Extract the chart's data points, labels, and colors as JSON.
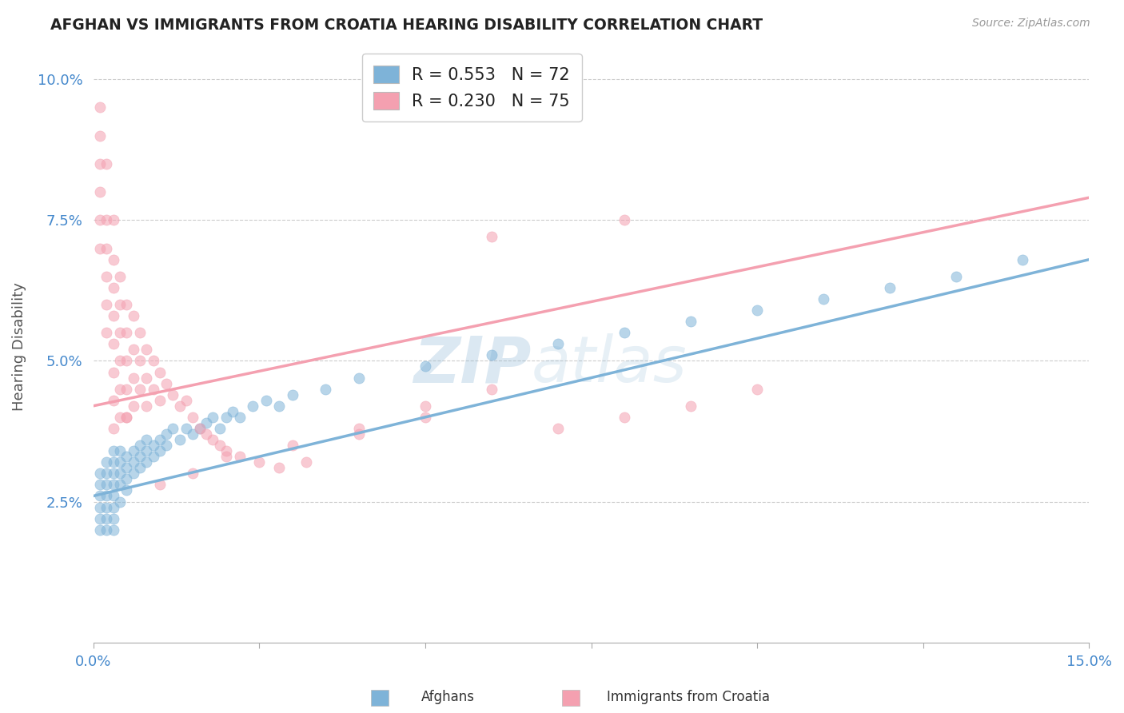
{
  "title": "AFGHAN VS IMMIGRANTS FROM CROATIA HEARING DISABILITY CORRELATION CHART",
  "source": "Source: ZipAtlas.com",
  "ylabel": "Hearing Disability",
  "xmin": 0.0,
  "xmax": 0.15,
  "ymin": 0.0,
  "ymax": 0.105,
  "yticks": [
    0.025,
    0.05,
    0.075,
    0.1
  ],
  "ytick_labels": [
    "2.5%",
    "5.0%",
    "7.5%",
    "10.0%"
  ],
  "xtick_left": "0.0%",
  "xtick_right": "15.0%",
  "blue_color": "#7EB3D8",
  "pink_color": "#F4A0B0",
  "blue_R": 0.553,
  "blue_N": 72,
  "pink_R": 0.23,
  "pink_N": 75,
  "legend_label_blue": "Afghans",
  "legend_label_pink": "Immigrants from Croatia",
  "watermark_zip": "ZIP",
  "watermark_atlas": "atlas",
  "blue_line_x0": 0.0,
  "blue_line_y0": 0.026,
  "blue_line_x1": 0.15,
  "blue_line_y1": 0.068,
  "pink_line_x0": 0.0,
  "pink_line_y0": 0.042,
  "pink_line_x1": 0.15,
  "pink_line_y1": 0.079,
  "blue_x": [
    0.001,
    0.001,
    0.001,
    0.001,
    0.001,
    0.001,
    0.002,
    0.002,
    0.002,
    0.002,
    0.002,
    0.002,
    0.002,
    0.003,
    0.003,
    0.003,
    0.003,
    0.003,
    0.003,
    0.003,
    0.003,
    0.004,
    0.004,
    0.004,
    0.004,
    0.004,
    0.005,
    0.005,
    0.005,
    0.005,
    0.006,
    0.006,
    0.006,
    0.007,
    0.007,
    0.007,
    0.008,
    0.008,
    0.008,
    0.009,
    0.009,
    0.01,
    0.01,
    0.011,
    0.011,
    0.012,
    0.013,
    0.014,
    0.015,
    0.016,
    0.017,
    0.018,
    0.019,
    0.02,
    0.021,
    0.022,
    0.024,
    0.026,
    0.028,
    0.03,
    0.035,
    0.04,
    0.05,
    0.06,
    0.07,
    0.08,
    0.09,
    0.1,
    0.11,
    0.12,
    0.13,
    0.14
  ],
  "blue_y": [
    0.03,
    0.028,
    0.026,
    0.024,
    0.022,
    0.02,
    0.032,
    0.03,
    0.028,
    0.026,
    0.024,
    0.022,
    0.02,
    0.034,
    0.032,
    0.03,
    0.028,
    0.026,
    0.024,
    0.022,
    0.02,
    0.034,
    0.032,
    0.03,
    0.028,
    0.025,
    0.033,
    0.031,
    0.029,
    0.027,
    0.034,
    0.032,
    0.03,
    0.035,
    0.033,
    0.031,
    0.036,
    0.034,
    0.032,
    0.035,
    0.033,
    0.036,
    0.034,
    0.037,
    0.035,
    0.038,
    0.036,
    0.038,
    0.037,
    0.038,
    0.039,
    0.04,
    0.038,
    0.04,
    0.041,
    0.04,
    0.042,
    0.043,
    0.042,
    0.044,
    0.045,
    0.047,
    0.049,
    0.051,
    0.053,
    0.055,
    0.057,
    0.059,
    0.061,
    0.063,
    0.065,
    0.068
  ],
  "pink_x": [
    0.001,
    0.001,
    0.001,
    0.001,
    0.001,
    0.001,
    0.002,
    0.002,
    0.002,
    0.002,
    0.002,
    0.002,
    0.003,
    0.003,
    0.003,
    0.003,
    0.003,
    0.003,
    0.003,
    0.003,
    0.004,
    0.004,
    0.004,
    0.004,
    0.004,
    0.004,
    0.005,
    0.005,
    0.005,
    0.005,
    0.005,
    0.006,
    0.006,
    0.006,
    0.006,
    0.007,
    0.007,
    0.007,
    0.008,
    0.008,
    0.008,
    0.009,
    0.009,
    0.01,
    0.01,
    0.011,
    0.012,
    0.013,
    0.014,
    0.015,
    0.016,
    0.017,
    0.018,
    0.019,
    0.02,
    0.022,
    0.025,
    0.028,
    0.032,
    0.04,
    0.05,
    0.06,
    0.07,
    0.08,
    0.09,
    0.1,
    0.08,
    0.06,
    0.05,
    0.04,
    0.03,
    0.02,
    0.015,
    0.01,
    0.005
  ],
  "pink_y": [
    0.095,
    0.09,
    0.085,
    0.08,
    0.075,
    0.07,
    0.085,
    0.075,
    0.07,
    0.065,
    0.06,
    0.055,
    0.075,
    0.068,
    0.063,
    0.058,
    0.053,
    0.048,
    0.043,
    0.038,
    0.065,
    0.06,
    0.055,
    0.05,
    0.045,
    0.04,
    0.06,
    0.055,
    0.05,
    0.045,
    0.04,
    0.058,
    0.052,
    0.047,
    0.042,
    0.055,
    0.05,
    0.045,
    0.052,
    0.047,
    0.042,
    0.05,
    0.045,
    0.048,
    0.043,
    0.046,
    0.044,
    0.042,
    0.043,
    0.04,
    0.038,
    0.037,
    0.036,
    0.035,
    0.034,
    0.033,
    0.032,
    0.031,
    0.032,
    0.037,
    0.04,
    0.045,
    0.038,
    0.04,
    0.042,
    0.045,
    0.075,
    0.072,
    0.042,
    0.038,
    0.035,
    0.033,
    0.03,
    0.028,
    0.04
  ]
}
